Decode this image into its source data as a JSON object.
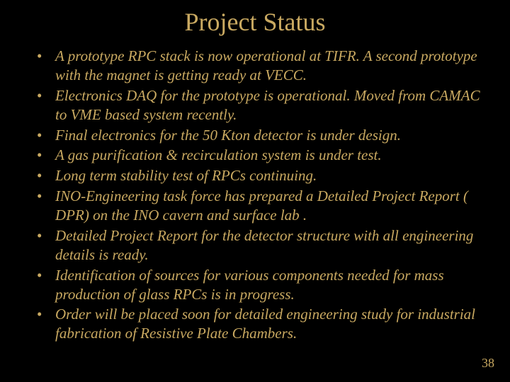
{
  "title": "Project Status",
  "bullets": [
    "A prototype RPC stack is now operational at TIFR. A second prototype with the magnet is getting ready at VECC.",
    "Electronics DAQ for the prototype is operational.  Moved from CAMAC to VME based system recently.",
    "Final electronics for the 50 Kton detector is under design.",
    "A gas purification & recirculation system is under test.",
    "Long term stability test of RPCs  continuing.",
    "INO-Engineering task force has prepared a Detailed Project Report ( DPR) on the INO cavern and surface lab .",
    "Detailed Project Report for the detector structure with all engineering details is ready.",
    "Identification of sources for various components needed for mass production of glass RPCs is in progress.",
    "Order will be placed soon for detailed engineering study for industrial fabrication of Resistive Plate Chambers."
  ],
  "page_number": "38",
  "colors": {
    "background": "#000000",
    "text": "#c9a961",
    "shadow": "#000000"
  }
}
